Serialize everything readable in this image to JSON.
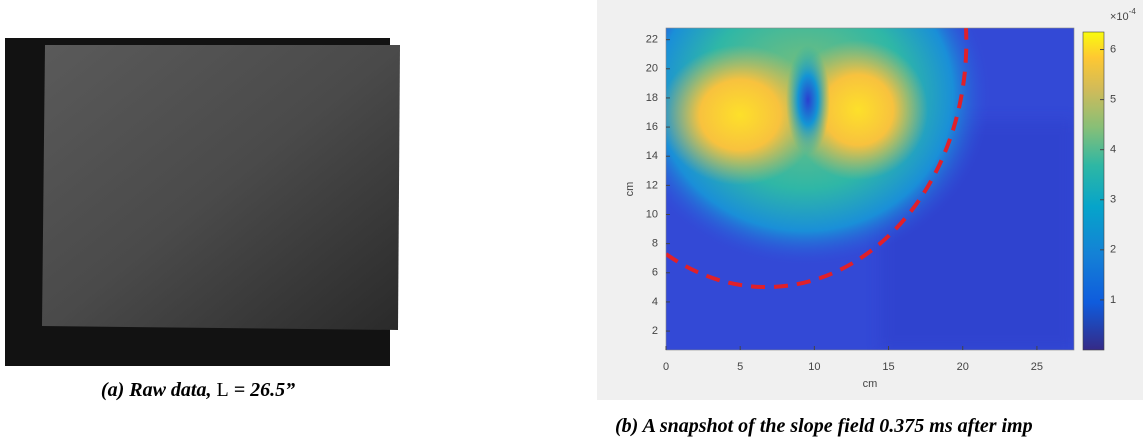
{
  "panel_a": {
    "caption": {
      "prefix": "(a) Raw data, ",
      "variable": "L",
      "suffix": " = 26.5”"
    }
  },
  "panel_b": {
    "type": "heatmap",
    "xlabel": "cm",
    "ylabel": "cm",
    "xlim": [
      0,
      27.5
    ],
    "xticks": [
      0,
      5,
      10,
      15,
      20,
      25
    ],
    "ylim": [
      0.7,
      22.8
    ],
    "yticks": [
      2,
      4,
      6,
      8,
      10,
      12,
      14,
      16,
      18,
      20,
      22
    ],
    "colorbar": {
      "lim": [
        0,
        6.35
      ],
      "ticks": [
        1,
        2,
        3,
        4,
        5,
        6
      ],
      "multiplier": "×10",
      "exponent": "-4"
    },
    "caption": "(b) A snapshot of the slope field 0.375 ms after imp"
  }
}
